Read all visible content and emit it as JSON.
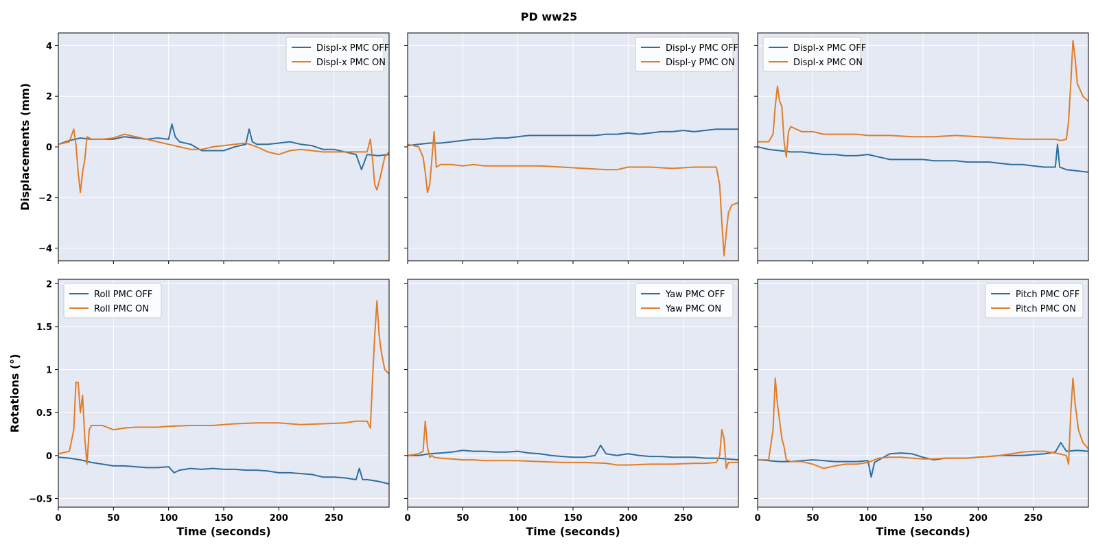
{
  "figure": {
    "title": "PD  ww25"
  },
  "colors": {
    "off": "#2e6e9e",
    "on": "#e07d27",
    "panel_background": "#e5e9f3",
    "grid": "#ffffff"
  },
  "chart_data": [
    {
      "type": "line",
      "xlabel": "",
      "ylabel": "Displacements (mm)",
      "xlim": [
        0,
        300
      ],
      "ylim": [
        -4.5,
        4.5
      ],
      "xticks": [
        0,
        50,
        100,
        150,
        200,
        250
      ],
      "yticks": [
        -4,
        -2,
        0,
        2,
        4
      ],
      "grid": true,
      "legend_position": "top-right",
      "series": [
        {
          "name": "Displ-x PMC OFF",
          "key": "off",
          "x": [
            0,
            10,
            20,
            30,
            40,
            50,
            60,
            70,
            80,
            90,
            100,
            103,
            106,
            110,
            120,
            130,
            140,
            150,
            160,
            170,
            173,
            176,
            180,
            190,
            200,
            210,
            220,
            230,
            240,
            250,
            260,
            270,
            275,
            280,
            290,
            300
          ],
          "y": [
            0.1,
            0.25,
            0.35,
            0.3,
            0.3,
            0.3,
            0.4,
            0.35,
            0.3,
            0.35,
            0.3,
            0.9,
            0.4,
            0.2,
            0.1,
            -0.15,
            -0.15,
            -0.15,
            0.0,
            0.1,
            0.7,
            0.2,
            0.1,
            0.1,
            0.15,
            0.2,
            0.1,
            0.05,
            -0.1,
            -0.1,
            -0.2,
            -0.3,
            -0.9,
            -0.3,
            -0.35,
            -0.3
          ]
        },
        {
          "name": "Displ-x PMC ON",
          "key": "on",
          "x": [
            0,
            10,
            14,
            16,
            18,
            20,
            22,
            24,
            26,
            30,
            40,
            50,
            60,
            70,
            80,
            90,
            100,
            110,
            120,
            130,
            140,
            150,
            160,
            170,
            180,
            190,
            200,
            210,
            220,
            230,
            240,
            250,
            260,
            270,
            280,
            283,
            285,
            287,
            289,
            292,
            296,
            300
          ],
          "y": [
            0.1,
            0.2,
            0.7,
            0.1,
            -1.0,
            -1.8,
            -1.0,
            -0.5,
            0.4,
            0.3,
            0.3,
            0.35,
            0.5,
            0.4,
            0.3,
            0.2,
            0.1,
            0.0,
            -0.1,
            -0.1,
            0.0,
            0.05,
            0.1,
            0.15,
            0.0,
            -0.2,
            -0.3,
            -0.15,
            -0.1,
            -0.15,
            -0.2,
            -0.2,
            -0.2,
            -0.2,
            -0.2,
            0.3,
            -0.5,
            -1.5,
            -1.7,
            -1.2,
            -0.4,
            -0.2
          ]
        }
      ]
    },
    {
      "type": "line",
      "xlabel": "",
      "ylabel": "",
      "xlim": [
        0,
        300
      ],
      "ylim": [
        -4.5,
        4.5
      ],
      "xticks": [
        0,
        50,
        100,
        150,
        200,
        250
      ],
      "yticks": [
        -4,
        -2,
        0,
        2,
        4
      ],
      "grid": true,
      "legend_position": "top-right",
      "series": [
        {
          "name": "Displ-y PMC OFF",
          "key": "off",
          "x": [
            0,
            10,
            20,
            30,
            40,
            50,
            60,
            70,
            80,
            90,
            100,
            110,
            120,
            130,
            140,
            150,
            160,
            170,
            180,
            190,
            200,
            210,
            220,
            230,
            240,
            250,
            260,
            270,
            280,
            290,
            300
          ],
          "y": [
            0.05,
            0.1,
            0.15,
            0.15,
            0.2,
            0.25,
            0.3,
            0.3,
            0.35,
            0.35,
            0.4,
            0.45,
            0.45,
            0.45,
            0.45,
            0.45,
            0.45,
            0.45,
            0.5,
            0.5,
            0.55,
            0.5,
            0.55,
            0.6,
            0.6,
            0.65,
            0.6,
            0.65,
            0.7,
            0.7,
            0.7
          ]
        },
        {
          "name": "Displ-y PMC ON",
          "key": "on",
          "x": [
            0,
            10,
            14,
            16,
            18,
            20,
            22,
            24,
            26,
            30,
            40,
            50,
            60,
            70,
            80,
            90,
            100,
            120,
            140,
            160,
            180,
            190,
            200,
            220,
            240,
            260,
            270,
            280,
            283,
            285,
            287,
            289,
            291,
            294,
            300
          ],
          "y": [
            0.1,
            0.0,
            -0.4,
            -1.0,
            -1.8,
            -1.5,
            -0.5,
            0.6,
            -0.8,
            -0.7,
            -0.7,
            -0.75,
            -0.7,
            -0.75,
            -0.75,
            -0.75,
            -0.75,
            -0.75,
            -0.8,
            -0.85,
            -0.9,
            -0.9,
            -0.8,
            -0.8,
            -0.85,
            -0.8,
            -0.8,
            -0.8,
            -1.5,
            -3.0,
            -4.3,
            -3.4,
            -2.6,
            -2.3,
            -2.2
          ]
        }
      ]
    },
    {
      "type": "line",
      "xlabel": "",
      "ylabel": "",
      "xlim": [
        0,
        300
      ],
      "ylim": [
        -4.5,
        4.5
      ],
      "xticks": [
        0,
        50,
        100,
        150,
        200,
        250
      ],
      "yticks": [
        -4,
        -2,
        0,
        2,
        4
      ],
      "grid": true,
      "legend_position": "top-left",
      "series": [
        {
          "name": "Displ-x PMC OFF",
          "key": "off",
          "x": [
            0,
            10,
            20,
            30,
            40,
            50,
            60,
            70,
            80,
            90,
            100,
            110,
            120,
            130,
            140,
            150,
            160,
            170,
            180,
            190,
            200,
            210,
            220,
            230,
            240,
            250,
            260,
            270,
            272,
            274,
            280,
            290,
            300
          ],
          "y": [
            0.0,
            -0.1,
            -0.15,
            -0.2,
            -0.2,
            -0.25,
            -0.3,
            -0.3,
            -0.35,
            -0.35,
            -0.3,
            -0.4,
            -0.5,
            -0.5,
            -0.5,
            -0.5,
            -0.55,
            -0.55,
            -0.55,
            -0.6,
            -0.6,
            -0.6,
            -0.65,
            -0.7,
            -0.7,
            -0.75,
            -0.8,
            -0.8,
            0.1,
            -0.8,
            -0.9,
            -0.95,
            -1.0
          ]
        },
        {
          "name": "Displ-x PMC ON",
          "key": "on",
          "x": [
            0,
            10,
            14,
            16,
            18,
            20,
            22,
            24,
            26,
            28,
            30,
            40,
            50,
            60,
            70,
            80,
            90,
            100,
            120,
            140,
            160,
            180,
            200,
            220,
            240,
            260,
            270,
            275,
            280,
            282,
            284,
            286,
            288,
            290,
            295,
            300
          ],
          "y": [
            0.2,
            0.2,
            0.5,
            1.6,
            2.4,
            1.8,
            1.6,
            0.2,
            -0.4,
            0.6,
            0.8,
            0.6,
            0.6,
            0.5,
            0.5,
            0.5,
            0.5,
            0.45,
            0.45,
            0.4,
            0.4,
            0.45,
            0.4,
            0.35,
            0.3,
            0.3,
            0.3,
            0.25,
            0.3,
            1.0,
            2.5,
            4.2,
            3.5,
            2.5,
            2.0,
            1.8
          ]
        }
      ]
    },
    {
      "type": "line",
      "xlabel": "Time (seconds)",
      "ylabel": "Rotations (°)",
      "xlim": [
        0,
        300
      ],
      "ylim": [
        -0.6,
        2.05
      ],
      "xticks": [
        0,
        50,
        100,
        150,
        200,
        250
      ],
      "yticks": [
        -0.5,
        0.0,
        0.5,
        1.0,
        1.5,
        2.0
      ],
      "grid": true,
      "legend_position": "top-left",
      "series": [
        {
          "name": "Roll PMC OFF",
          "key": "off",
          "x": [
            0,
            10,
            20,
            30,
            40,
            50,
            60,
            70,
            80,
            90,
            100,
            105,
            110,
            120,
            130,
            140,
            150,
            160,
            170,
            180,
            190,
            200,
            210,
            220,
            230,
            240,
            250,
            260,
            270,
            273,
            276,
            280,
            290,
            300
          ],
          "y": [
            -0.02,
            -0.03,
            -0.05,
            -0.08,
            -0.1,
            -0.12,
            -0.12,
            -0.13,
            -0.14,
            -0.14,
            -0.13,
            -0.2,
            -0.17,
            -0.15,
            -0.16,
            -0.15,
            -0.16,
            -0.16,
            -0.17,
            -0.17,
            -0.18,
            -0.2,
            -0.2,
            -0.21,
            -0.22,
            -0.25,
            -0.25,
            -0.26,
            -0.28,
            -0.15,
            -0.28,
            -0.28,
            -0.3,
            -0.33
          ]
        },
        {
          "name": "Roll PMC ON",
          "key": "on",
          "x": [
            0,
            10,
            14,
            16,
            18,
            20,
            22,
            24,
            26,
            28,
            30,
            40,
            50,
            60,
            70,
            80,
            90,
            100,
            120,
            140,
            160,
            180,
            200,
            220,
            240,
            260,
            270,
            280,
            283,
            285,
            287,
            289,
            291,
            293,
            296,
            300
          ],
          "y": [
            0.02,
            0.05,
            0.3,
            0.85,
            0.85,
            0.5,
            0.7,
            0.2,
            -0.1,
            0.3,
            0.35,
            0.35,
            0.3,
            0.32,
            0.33,
            0.33,
            0.33,
            0.34,
            0.35,
            0.35,
            0.37,
            0.38,
            0.38,
            0.36,
            0.37,
            0.38,
            0.4,
            0.4,
            0.32,
            0.9,
            1.4,
            1.8,
            1.4,
            1.2,
            1.0,
            0.95
          ]
        }
      ]
    },
    {
      "type": "line",
      "xlabel": "Time (seconds)",
      "ylabel": "",
      "xlim": [
        0,
        300
      ],
      "ylim": [
        -0.6,
        2.05
      ],
      "xticks": [
        0,
        50,
        100,
        150,
        200,
        250
      ],
      "yticks": [
        -0.5,
        0.0,
        0.5,
        1.0,
        1.5,
        2.0
      ],
      "grid": true,
      "legend_position": "top-right",
      "series": [
        {
          "name": "Yaw PMC OFF",
          "key": "off",
          "x": [
            0,
            10,
            20,
            30,
            40,
            50,
            60,
            70,
            80,
            90,
            100,
            110,
            120,
            130,
            140,
            150,
            160,
            170,
            175,
            180,
            190,
            200,
            210,
            220,
            230,
            240,
            250,
            260,
            270,
            280,
            290,
            300
          ],
          "y": [
            0.0,
            0.0,
            0.02,
            0.03,
            0.04,
            0.06,
            0.05,
            0.05,
            0.04,
            0.04,
            0.05,
            0.03,
            0.02,
            0.0,
            -0.01,
            -0.02,
            -0.02,
            0.0,
            0.12,
            0.02,
            0.0,
            0.02,
            0.0,
            -0.01,
            -0.01,
            -0.02,
            -0.02,
            -0.02,
            -0.03,
            -0.03,
            -0.04,
            -0.05
          ]
        },
        {
          "name": "Yaw PMC ON",
          "key": "on",
          "x": [
            0,
            10,
            14,
            16,
            18,
            20,
            22,
            24,
            30,
            40,
            50,
            60,
            70,
            80,
            90,
            100,
            120,
            140,
            160,
            180,
            190,
            200,
            220,
            240,
            260,
            270,
            280,
            283,
            285,
            287,
            289,
            291,
            294,
            300
          ],
          "y": [
            0.0,
            0.02,
            0.05,
            0.4,
            0.1,
            -0.02,
            0.0,
            -0.02,
            -0.03,
            -0.04,
            -0.05,
            -0.05,
            -0.06,
            -0.06,
            -0.06,
            -0.06,
            -0.07,
            -0.08,
            -0.08,
            -0.09,
            -0.11,
            -0.11,
            -0.1,
            -0.1,
            -0.09,
            -0.09,
            -0.08,
            0.0,
            0.3,
            0.2,
            -0.15,
            -0.08,
            -0.08,
            -0.08
          ]
        }
      ]
    },
    {
      "type": "line",
      "xlabel": "Time (seconds)",
      "ylabel": "",
      "xlim": [
        0,
        300
      ],
      "ylim": [
        -0.6,
        2.05
      ],
      "xticks": [
        0,
        50,
        100,
        150,
        200,
        250
      ],
      "yticks": [
        -0.5,
        0.0,
        0.5,
        1.0,
        1.5,
        2.0
      ],
      "grid": true,
      "legend_position": "top-right",
      "series": [
        {
          "name": "Pitch PMC OFF",
          "key": "off",
          "x": [
            0,
            10,
            20,
            30,
            40,
            50,
            60,
            70,
            80,
            90,
            100,
            103,
            106,
            110,
            120,
            130,
            140,
            150,
            160,
            170,
            180,
            190,
            200,
            210,
            220,
            230,
            240,
            250,
            260,
            270,
            275,
            280,
            290,
            300
          ],
          "y": [
            -0.05,
            -0.06,
            -0.07,
            -0.07,
            -0.06,
            -0.05,
            -0.06,
            -0.07,
            -0.07,
            -0.07,
            -0.06,
            -0.25,
            -0.08,
            -0.05,
            0.02,
            0.03,
            0.02,
            -0.02,
            -0.05,
            -0.03,
            -0.03,
            -0.03,
            -0.02,
            -0.01,
            0.0,
            0.0,
            0.0,
            0.01,
            0.02,
            0.04,
            0.15,
            0.05,
            0.06,
            0.05
          ]
        },
        {
          "name": "Pitch PMC ON",
          "key": "on",
          "x": [
            0,
            10,
            14,
            16,
            18,
            20,
            22,
            24,
            26,
            30,
            40,
            50,
            60,
            70,
            80,
            90,
            100,
            110,
            120,
            130,
            140,
            150,
            160,
            170,
            180,
            190,
            200,
            210,
            220,
            230,
            240,
            250,
            260,
            270,
            280,
            282,
            284,
            286,
            288,
            291,
            295,
            300
          ],
          "y": [
            -0.05,
            -0.05,
            0.3,
            0.9,
            0.6,
            0.4,
            0.2,
            0.1,
            -0.05,
            -0.07,
            -0.07,
            -0.1,
            -0.15,
            -0.12,
            -0.1,
            -0.1,
            -0.08,
            -0.03,
            -0.02,
            -0.02,
            -0.03,
            -0.04,
            -0.04,
            -0.03,
            -0.03,
            -0.03,
            -0.02,
            -0.01,
            0.0,
            0.02,
            0.04,
            0.05,
            0.05,
            0.03,
            0.0,
            -0.1,
            0.5,
            0.9,
            0.6,
            0.3,
            0.15,
            0.08
          ]
        }
      ]
    }
  ]
}
